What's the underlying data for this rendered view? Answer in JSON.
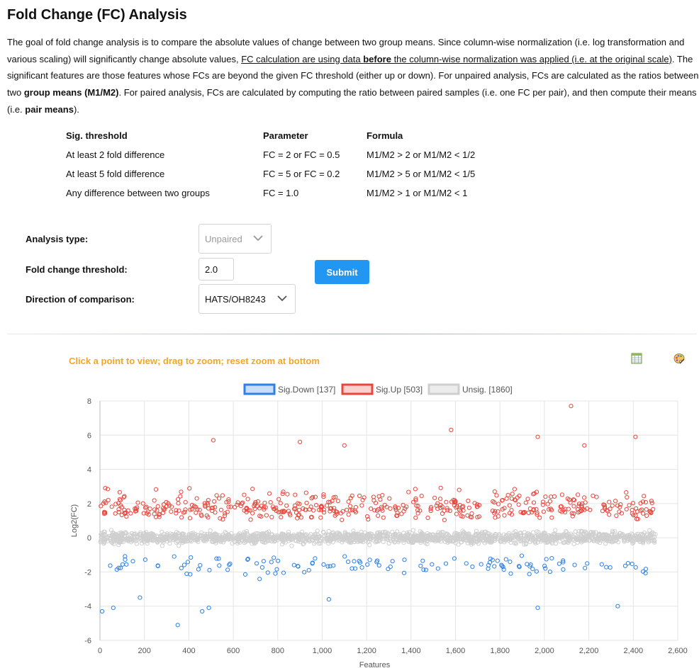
{
  "page": {
    "title": "Fold Change (FC) Analysis",
    "intro": {
      "p1": "The goal of fold change analysis is to compare the absolute values of change between two group means. Since column-wise normalization (i.e. log transformation and various scaling) will significantly change absolute values, ",
      "u1": "FC calculation are using data ",
      "u_bold": "before",
      "u2": " the column-wise normalization was applied (i.e. at the original scale)",
      "p2": ". The significant features are those features whose FCs are beyond the given FC threshold (either up or down). For unpaired analysis, FCs are calculated as the ratios between two ",
      "b1": "group means (M1/M2)",
      "p3": ". For paired analysis, FCs are calculated by computing the ratio between paired samples (i.e. one FC per pair), and then compute their means (i.e. ",
      "b2": "pair means",
      "p4": ")."
    }
  },
  "threshold_table": {
    "headers": [
      "Sig. threshold",
      "Parameter",
      "Formula"
    ],
    "rows": [
      [
        "At least 2 fold difference",
        "FC = 2 or FC = 0.5",
        "M1/M2 > 2 or M1/M2 < 1/2"
      ],
      [
        "At least 5 fold difference",
        "FC = 5 or FC = 0.2",
        "M1/M2 > 5 or M1/M2 < 1/5"
      ],
      [
        "Any difference between two groups",
        "FC = 1.0",
        "M1/M2 > 1 or M1/M2 < 1"
      ]
    ]
  },
  "form": {
    "analysis_type_label": "Analysis type:",
    "analysis_type_value": "Unpaired",
    "fc_threshold_label": "Fold change threshold:",
    "fc_threshold_value": "2.0",
    "direction_label": "Direction of comparison:",
    "direction_value": "HATS/OH8243",
    "submit_label": "Submit"
  },
  "chart_toolbar": {
    "hint": "Click a point to view; drag to zoom; reset zoom at bottom",
    "icons": [
      "table-icon",
      "palette-icon"
    ]
  },
  "colors": {
    "sig_down": "#2f80e6",
    "sig_up": "#e8463c",
    "unsig": "#cfcfcf",
    "submit": "#2196f3",
    "hint": "#f5a623"
  },
  "chart_data": {
    "type": "scatter",
    "title": "",
    "xlabel": "Features",
    "ylabel": "Log2(FC)",
    "xlim": [
      0,
      2600
    ],
    "ylim": [
      -6,
      8
    ],
    "xticks": [
      0,
      200,
      400,
      600,
      800,
      1000,
      1200,
      1400,
      1600,
      1800,
      2000,
      2200,
      2400,
      2600
    ],
    "xtick_labels": [
      "0",
      "200",
      "400",
      "600",
      "800",
      "1,000",
      "1,200",
      "1,400",
      "1,600",
      "1,800",
      "2,000",
      "2,200",
      "2,400",
      "2,600"
    ],
    "yticks": [
      -6,
      -4,
      -2,
      0,
      2,
      4,
      6,
      8
    ],
    "grid": true,
    "legend_position": "top-center",
    "series": [
      {
        "name": "Sig.Down [137]",
        "count": 137,
        "y_range": [
          -5.2,
          -1.0
        ],
        "highlighted_points": [
          [
            10,
            -4.3
          ],
          [
            60,
            -4.1
          ],
          [
            180,
            -3.5
          ],
          [
            350,
            -5.1
          ],
          [
            460,
            -4.3
          ],
          [
            490,
            -4.1
          ],
          [
            1030,
            -3.6
          ],
          [
            1970,
            -4.1
          ],
          [
            2330,
            -4.0
          ]
        ]
      },
      {
        "name": "Sig.Up [503]",
        "count": 503,
        "y_range": [
          1.0,
          7.8
        ],
        "highlighted_points": [
          [
            510,
            5.7
          ],
          [
            900,
            5.6
          ],
          [
            1100,
            5.4
          ],
          [
            1580,
            6.3
          ],
          [
            1970,
            5.9
          ],
          [
            2120,
            7.7
          ],
          [
            2410,
            5.9
          ],
          [
            2180,
            5.4
          ]
        ]
      },
      {
        "name": "Unsig. [1860]",
        "count": 1860,
        "y_range": [
          -1.0,
          1.0
        ],
        "highlighted_points": []
      }
    ]
  }
}
